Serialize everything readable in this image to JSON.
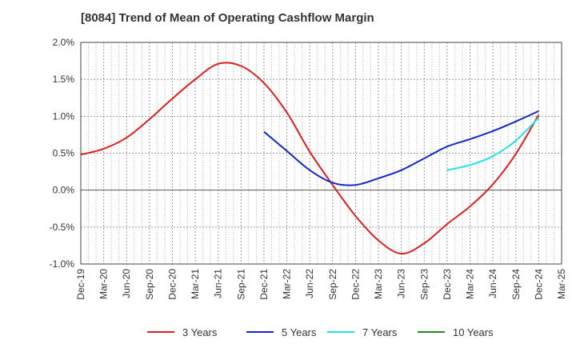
{
  "header": {
    "title": "[8084]  Trend of Mean of Operating Cashflow Margin"
  },
  "chart_data": {
    "type": "line",
    "title": "[8084]  Trend of Mean of Operating Cashflow Margin",
    "xlabel": "",
    "ylabel": "",
    "ylim": [
      -1.0,
      2.0
    ],
    "y_ticks": [
      "2.0%",
      "1.5%",
      "1.0%",
      "0.5%",
      "0.0%",
      "-0.5%",
      "-1.0%"
    ],
    "x": [
      "Dec-19",
      "Mar-20",
      "Jun-20",
      "Sep-20",
      "Dec-20",
      "Mar-21",
      "Jun-21",
      "Sep-21",
      "Dec-21",
      "Mar-22",
      "Jun-22",
      "Sep-22",
      "Dec-22",
      "Mar-23",
      "Jun-23",
      "Sep-23",
      "Dec-23",
      "Mar-24",
      "Jun-24",
      "Sep-24",
      "Dec-24",
      "Mar-25"
    ],
    "grid": true,
    "legend_position": "bottom",
    "series": [
      {
        "name": "3 Years",
        "color": "#dd1f1f",
        "values": [
          0.48,
          0.56,
          0.71,
          0.96,
          1.24,
          1.5,
          1.71,
          1.68,
          1.45,
          1.05,
          0.52,
          0.07,
          -0.35,
          -0.68,
          -0.86,
          -0.72,
          -0.46,
          -0.22,
          0.08,
          0.49,
          1.02,
          null
        ]
      },
      {
        "name": "5 Years",
        "color": "#1428c8",
        "values": [
          null,
          null,
          null,
          null,
          null,
          null,
          null,
          null,
          0.79,
          0.53,
          0.27,
          0.1,
          0.07,
          0.16,
          0.27,
          0.43,
          0.59,
          0.69,
          0.8,
          0.93,
          1.07,
          null
        ]
      },
      {
        "name": "7 Years",
        "color": "#22e1e6",
        "values": [
          null,
          null,
          null,
          null,
          null,
          null,
          null,
          null,
          null,
          null,
          null,
          null,
          null,
          null,
          null,
          null,
          0.27,
          0.34,
          0.46,
          0.67,
          0.98,
          null
        ]
      },
      {
        "name": "10 Years",
        "color": "#228b22",
        "values": [
          null,
          null,
          null,
          null,
          null,
          null,
          null,
          null,
          null,
          null,
          null,
          null,
          null,
          null,
          null,
          null,
          null,
          null,
          null,
          null,
          null,
          null
        ]
      }
    ]
  }
}
